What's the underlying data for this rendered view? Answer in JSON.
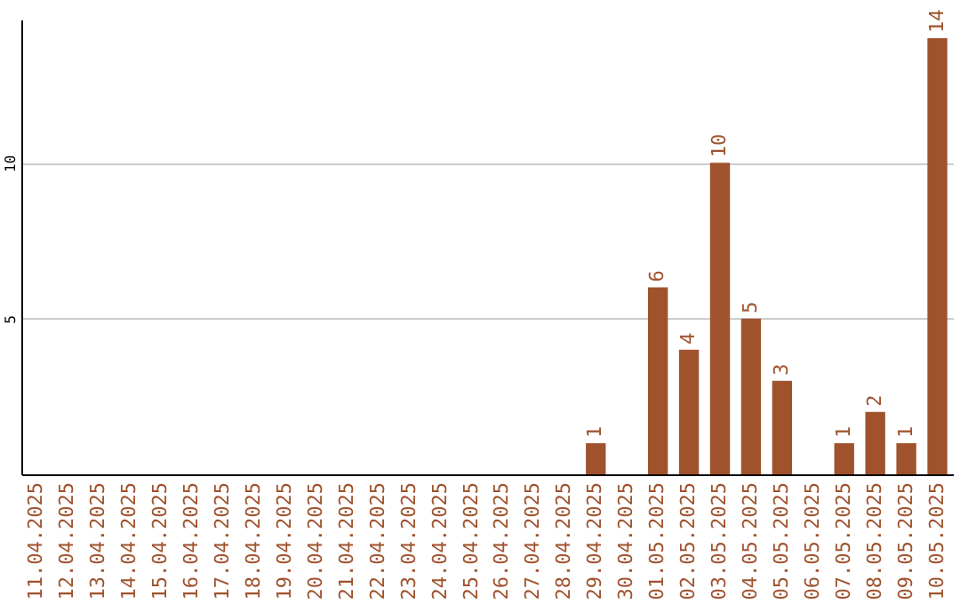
{
  "chart_data": {
    "type": "bar",
    "categories": [
      "11.04.2025",
      "12.04.2025",
      "13.04.2025",
      "14.04.2025",
      "15.04.2025",
      "16.04.2025",
      "17.04.2025",
      "18.04.2025",
      "19.04.2025",
      "20.04.2025",
      "21.04.2025",
      "22.04.2025",
      "23.04.2025",
      "24.04.2025",
      "25.04.2025",
      "26.04.2025",
      "27.04.2025",
      "28.04.2025",
      "29.04.2025",
      "30.04.2025",
      "01.05.2025",
      "02.05.2025",
      "03.05.2025",
      "04.05.2025",
      "05.05.2025",
      "06.05.2025",
      "07.05.2025",
      "08.05.2025",
      "09.05.2025",
      "10.05.2025"
    ],
    "values": [
      0,
      0,
      0,
      0,
      0,
      0,
      0,
      0,
      0,
      0,
      0,
      0,
      0,
      0,
      0,
      0,
      0,
      0,
      1,
      0,
      6,
      4,
      10,
      5,
      3,
      0,
      1,
      2,
      1,
      14
    ],
    "value_labels": [
      null,
      null,
      null,
      null,
      null,
      null,
      null,
      null,
      null,
      null,
      null,
      null,
      null,
      null,
      null,
      null,
      null,
      null,
      "1",
      null,
      "6",
      "4",
      "10",
      "5",
      "3",
      null,
      "1",
      "2",
      "1",
      "14"
    ],
    "color": "#a0522d",
    "ylim": [
      0,
      14.6
    ],
    "yticks": [
      5,
      10
    ],
    "grid": "y"
  }
}
